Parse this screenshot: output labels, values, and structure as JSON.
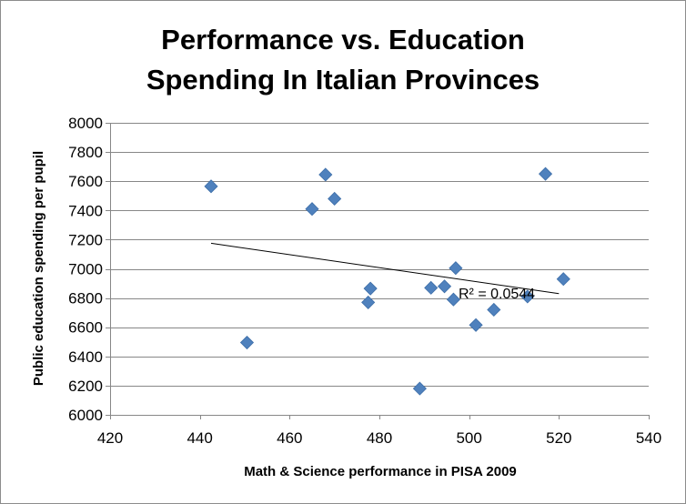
{
  "chart_data": {
    "type": "scatter",
    "title_lines": [
      "Performance vs. Education",
      "Spending In Italian Provinces"
    ],
    "xlabel": "Math & Science performance in PISA 2009",
    "ylabel": "Public education spending per pupil",
    "xlim": [
      420,
      540
    ],
    "ylim": [
      6000,
      8000
    ],
    "xticks": [
      420,
      440,
      460,
      480,
      500,
      520,
      540
    ],
    "yticks": [
      6000,
      6200,
      6400,
      6600,
      6800,
      7000,
      7200,
      7400,
      7600,
      7800,
      8000
    ],
    "grid": "horizontal",
    "marker_color": "#4f81bd",
    "marker_shape": "diamond",
    "points": [
      {
        "x": 442.5,
        "y": 7565
      },
      {
        "x": 450.5,
        "y": 6495
      },
      {
        "x": 465,
        "y": 7410
      },
      {
        "x": 468,
        "y": 7645
      },
      {
        "x": 470,
        "y": 7480
      },
      {
        "x": 477.5,
        "y": 6770
      },
      {
        "x": 478,
        "y": 6865
      },
      {
        "x": 489,
        "y": 6180
      },
      {
        "x": 491.5,
        "y": 6870
      },
      {
        "x": 494.5,
        "y": 6880
      },
      {
        "x": 496.5,
        "y": 6790
      },
      {
        "x": 497,
        "y": 7005
      },
      {
        "x": 501.5,
        "y": 6615
      },
      {
        "x": 505.5,
        "y": 6720
      },
      {
        "x": 513,
        "y": 6810
      },
      {
        "x": 517,
        "y": 7650
      },
      {
        "x": 521,
        "y": 6930
      }
    ],
    "trendline": {
      "x": [
        442.5,
        520
      ],
      "y": [
        7175,
        6830
      ],
      "color": "#000000"
    },
    "annotation": "R² = 0.0544"
  }
}
